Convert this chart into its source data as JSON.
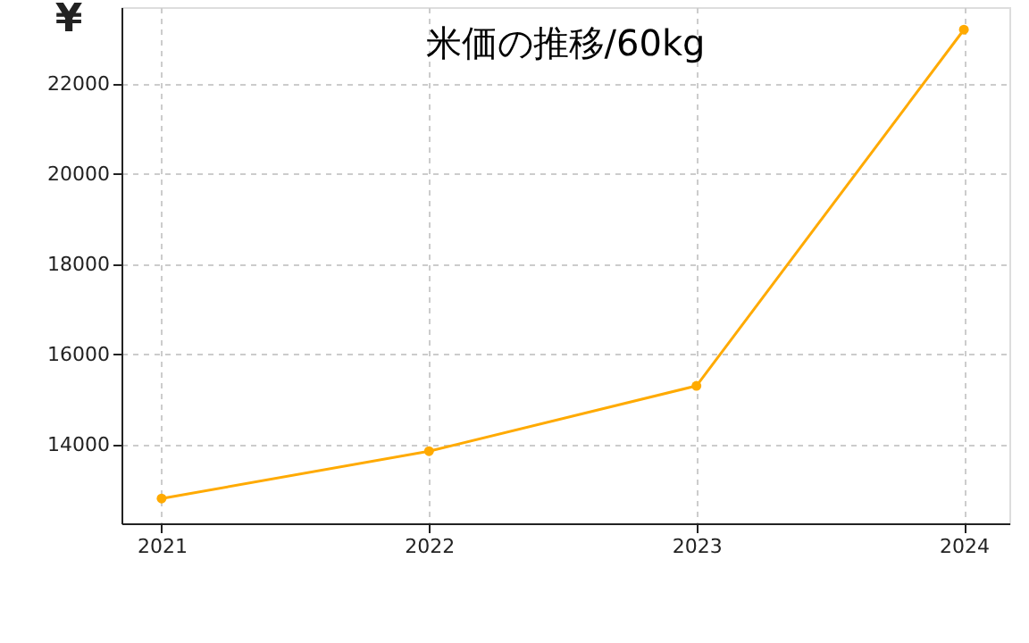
{
  "chart_data": {
    "type": "line",
    "title": "米価の推移/60kg",
    "ylabel": "¥",
    "x": [
      2021,
      2022,
      2023,
      2024
    ],
    "series": [
      {
        "color": "#ffaa00",
        "values": [
          12800,
          13850,
          15300,
          23200
        ]
      }
    ],
    "xlim": [
      2020.85,
      2024.17
    ],
    "xticks": [
      2021,
      2022,
      2023,
      2024
    ],
    "ylim": [
      12250,
      23700
    ],
    "yticks": [
      14000,
      16000,
      18000,
      20000,
      22000
    ],
    "grid": true,
    "marker": "circle",
    "line_style": "solid"
  }
}
